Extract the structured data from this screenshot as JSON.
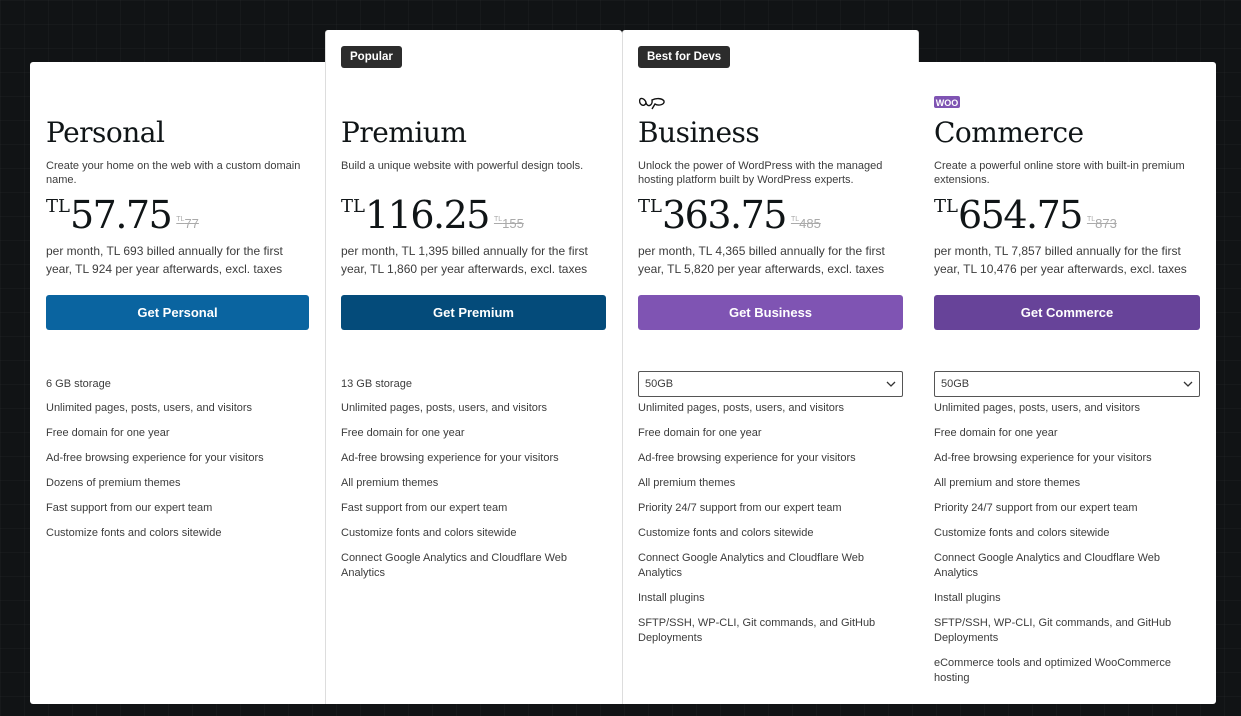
{
  "plans": [
    {
      "name": "Personal",
      "badge": null,
      "desc": "Create your home on the web with a custom domain name.",
      "currency": "TL",
      "price": "57.75",
      "old_currency": "TL",
      "old_price": "77",
      "billing": "per month, TL 693 billed annually for the first year, TL 924 per year afterwards, excl. taxes",
      "button": "Get Personal",
      "button_color": "#0a64a0",
      "storage": "6 GB storage",
      "features": [
        "Unlimited pages, posts, users, and visitors",
        "Free domain for one year",
        "Ad-free browsing experience for your visitors",
        "Dozens of premium themes",
        "Fast support from our expert team",
        "Customize fonts and colors sitewide"
      ]
    },
    {
      "name": "Premium",
      "badge": "Popular",
      "desc": "Build a unique website with powerful design tools.",
      "currency": "TL",
      "price": "116.25",
      "old_currency": "TL",
      "old_price": "155",
      "billing": "per month, TL 1,395 billed annually for the first year, TL 1,860 per year afterwards, excl. taxes",
      "button": "Get Premium",
      "button_color": "#044b7a",
      "storage": "13 GB storage",
      "features": [
        "Unlimited pages, posts, users, and visitors",
        "Free domain for one year",
        "Ad-free browsing experience for your visitors",
        "All premium themes",
        "Fast support from our expert team",
        "Customize fonts and colors sitewide",
        "Connect Google Analytics and Cloudflare Web Analytics"
      ]
    },
    {
      "name": "Business",
      "badge": "Best for Devs",
      "logo": "wp-cloud-icon",
      "desc": "Unlock the power of WordPress with the managed hosting platform built by WordPress experts.",
      "currency": "TL",
      "price": "363.75",
      "old_currency": "TL",
      "old_price": "485",
      "billing": "per month, TL 4,365 billed annually for the first year, TL 5,820 per year afterwards, excl. taxes",
      "button": "Get Business",
      "button_color": "#7f54b3",
      "storage_select": "50GB",
      "features": [
        "Unlimited pages, posts, users, and visitors",
        "Free domain for one year",
        "Ad-free browsing experience for your visitors",
        "All premium themes",
        "Priority 24/7 support from our expert team",
        "Customize fonts and colors sitewide",
        "Connect Google Analytics and Cloudflare Web Analytics",
        "Install plugins",
        "SFTP/SSH, WP-CLI, Git commands, and GitHub Deployments"
      ]
    },
    {
      "name": "Commerce",
      "badge": null,
      "logo": "woo",
      "desc": "Create a powerful online store with built-in premium extensions.",
      "currency": "TL",
      "price": "654.75",
      "old_currency": "TL",
      "old_price": "873",
      "billing": "per month, TL 7,857 billed annually for the first year, TL 10,476 per year afterwards, excl. taxes",
      "button": "Get Commerce",
      "button_color": "#674399",
      "storage_select": "50GB",
      "features": [
        "Unlimited pages, posts, users, and visitors",
        "Free domain for one year",
        "Ad-free browsing experience for your visitors",
        "All premium and store themes",
        "Priority 24/7 support from our expert team",
        "Customize fonts and colors sitewide",
        "Connect Google Analytics and Cloudflare Web Analytics",
        "Install plugins",
        "SFTP/SSH, WP-CLI, Git commands, and GitHub Deployments",
        "eCommerce tools and optimized WooCommerce hosting"
      ]
    }
  ]
}
